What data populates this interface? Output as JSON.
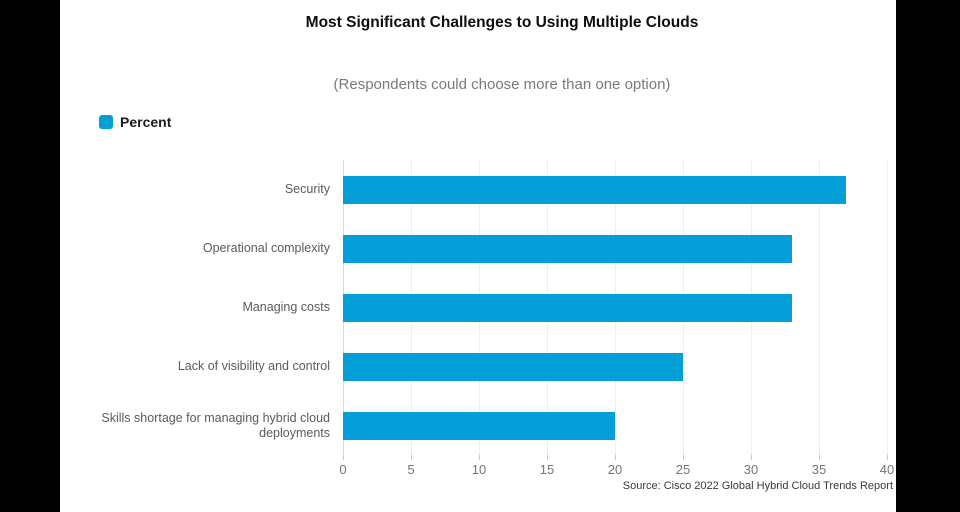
{
  "chart": {
    "title": "Most Significant Challenges to Using Multiple Clouds",
    "subtitle": "(Respondents could choose more than one option)",
    "legend_label": "Percent",
    "source": "Source: Cisco 2022 Global Hybrid Cloud Trends Report",
    "colors": {
      "bar": "#049FD9",
      "grid": "#ededf2",
      "axis_line": "#d7dae4",
      "tick": "#c7c7cd",
      "background": "#ffffff",
      "letterbox": "#000000"
    }
  },
  "chart_data": {
    "type": "bar",
    "orientation": "horizontal",
    "title": "Most Significant Challenges to Using Multiple Clouds",
    "subtitle": "(Respondents could choose more than one option)",
    "series_name": "Percent",
    "categories": [
      "Security",
      "Operational complexity",
      "Managing costs",
      "Lack of visibility and control",
      "Skills shortage for managing hybrid cloud deployments"
    ],
    "values": [
      37,
      33,
      33,
      25,
      20
    ],
    "xlabel": "",
    "ylabel": "",
    "xlim": [
      0,
      40
    ],
    "xticks": [
      0,
      5,
      10,
      15,
      20,
      25,
      30,
      35,
      40
    ],
    "grid": true,
    "legend_position": "top-left",
    "source": "Source: Cisco 2022 Global Hybrid Cloud Trends Report"
  }
}
